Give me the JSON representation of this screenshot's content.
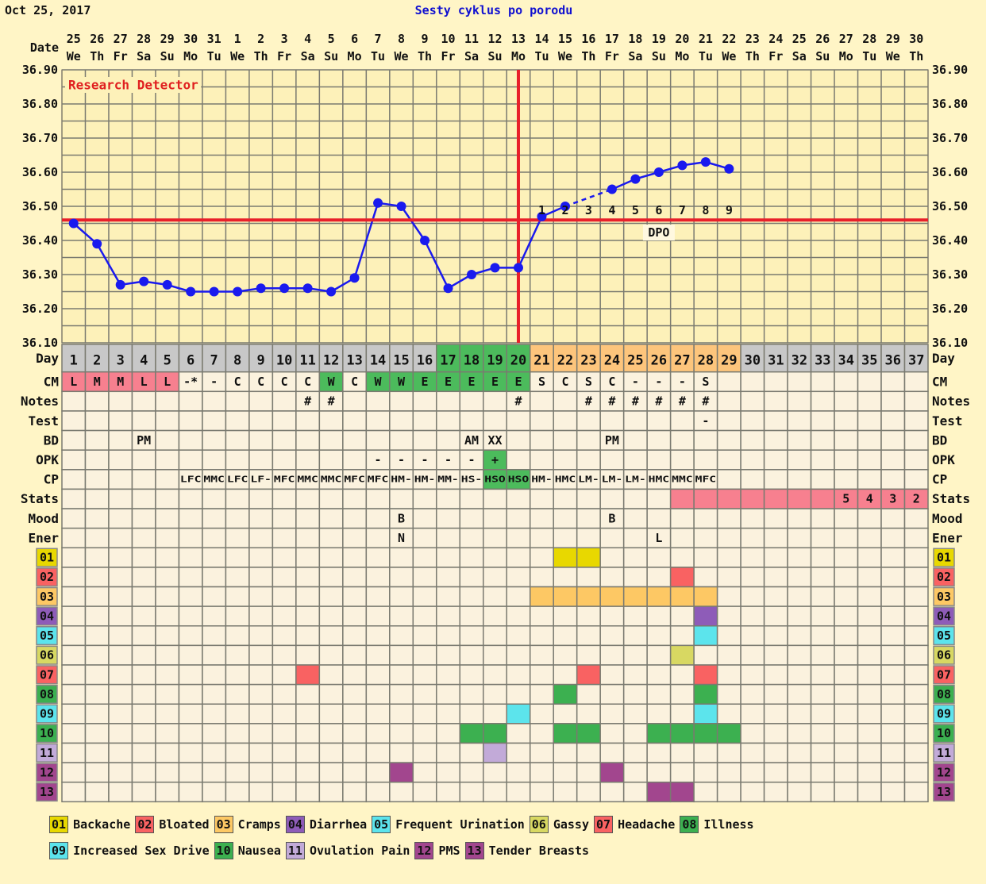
{
  "header": {
    "date": "Oct 25, 2017",
    "title": "Sesty cyklus po porodu"
  },
  "labels": {
    "date": "Date",
    "research_detector": "Research Detector",
    "dpo": "DPO"
  },
  "colors": {
    "page_bg": "#fff5c6",
    "chart_bg": "#fdf1b9",
    "cell_bg": "#fbf2de",
    "grid": "#7a7a70",
    "temp_line": "#1a1aee",
    "coverline": "#e8202a",
    "pink": "#f7808f",
    "green": "#4cbb5c",
    "orange": "#fdc57c",
    "gray": "#c8c8c8",
    "title": "#1010d0"
  },
  "dates": [
    "25",
    "26",
    "27",
    "28",
    "29",
    "30",
    "31",
    "1",
    "2",
    "3",
    "4",
    "5",
    "6",
    "7",
    "8",
    "9",
    "10",
    "11",
    "12",
    "13",
    "14",
    "15",
    "16",
    "17",
    "18",
    "19",
    "20",
    "21",
    "22",
    "23",
    "24",
    "25",
    "26",
    "27",
    "28",
    "29",
    "30"
  ],
  "weekdays": [
    "We",
    "Th",
    "Fr",
    "Sa",
    "Su",
    "Mo",
    "Tu",
    "We",
    "Th",
    "Fr",
    "Sa",
    "Su",
    "Mo",
    "Tu",
    "We",
    "Th",
    "Fr",
    "Sa",
    "Su",
    "Mo",
    "Tu",
    "We",
    "Th",
    "Fr",
    "Sa",
    "Su",
    "Mo",
    "Tu",
    "We",
    "Th",
    "Fr",
    "Sa",
    "Su",
    "Mo",
    "Tu",
    "We",
    "Th"
  ],
  "chart_data": {
    "type": "line",
    "ylim": [
      36.1,
      36.9
    ],
    "y_ticks": [
      "36.90",
      "36.80",
      "36.70",
      "36.60",
      "36.50",
      "36.40",
      "36.30",
      "36.20",
      "36.10"
    ],
    "grid": true,
    "temperatures": [
      36.45,
      36.39,
      36.27,
      36.28,
      36.27,
      36.25,
      36.25,
      36.25,
      36.26,
      36.26,
      36.26,
      36.25,
      36.29,
      36.51,
      36.5,
      36.4,
      36.26,
      36.3,
      36.32,
      36.32,
      36.47,
      36.5,
      null,
      36.55,
      36.58,
      36.6,
      36.62,
      36.63,
      36.61
    ],
    "coverline": 36.46,
    "ovulation_day": 20,
    "dpo_labels": [
      "1",
      "2",
      "3",
      "4",
      "5",
      "6",
      "7",
      "8",
      "9"
    ],
    "dpo_start_day": 21
  },
  "rows": {
    "day": {
      "label": "Day",
      "green_days": [
        17,
        18,
        19,
        20
      ],
      "orange_days": [
        21,
        22,
        23,
        24,
        25,
        26,
        27,
        28,
        29
      ]
    },
    "cm": {
      "label": "CM",
      "values": {
        "1": "L",
        "2": "M",
        "3": "M",
        "4": "L",
        "5": "L",
        "6": "-*",
        "7": "-",
        "8": "C",
        "9": "C",
        "10": "C",
        "11": "C",
        "12": "W",
        "13": "C",
        "14": "W",
        "15": "W",
        "16": "E",
        "17": "E",
        "18": "E",
        "19": "E",
        "20": "E",
        "21": "S",
        "22": "C",
        "23": "S",
        "24": "C",
        "25": "-",
        "26": "-",
        "27": "-",
        "28": "S"
      },
      "pink_days": [
        1,
        2,
        3,
        4,
        5
      ],
      "green_days": [
        12,
        14,
        15,
        16,
        17,
        18,
        19,
        20
      ]
    },
    "notes": {
      "label": "Notes",
      "values": {
        "11": "#",
        "12": "#",
        "20": "#",
        "23": "#",
        "24": "#",
        "25": "#",
        "26": "#",
        "27": "#",
        "28": "#"
      }
    },
    "test": {
      "label": "Test",
      "values": {
        "28": "-"
      }
    },
    "bd": {
      "label": "BD",
      "values": {
        "4": "PM",
        "18": "AM",
        "19": "XX",
        "24": "PM"
      }
    },
    "opk": {
      "label": "OPK",
      "values": {
        "14": "-",
        "15": "-",
        "16": "-",
        "17": "-",
        "18": "-",
        "19": "+"
      },
      "green_days": [
        19
      ]
    },
    "cp": {
      "label": "CP",
      "values": {
        "6": "LFC",
        "7": "MMC",
        "8": "LFC",
        "9": "LF-",
        "10": "MFC",
        "11": "MMC",
        "12": "MMC",
        "13": "MFC",
        "14": "MFC",
        "15": "HM-",
        "16": "HM-",
        "17": "MM-",
        "18": "HS-",
        "19": "HSO",
        "20": "HSO",
        "21": "HM-",
        "22": "HMC",
        "23": "LM-",
        "24": "LM-",
        "25": "LM-",
        "26": "HMC",
        "27": "MMC",
        "28": "MFC"
      },
      "green_days": [
        19,
        20
      ]
    },
    "stats": {
      "label": "Stats",
      "values": {
        "34": "5",
        "35": "4",
        "36": "3",
        "37": "2"
      },
      "pink_days": [
        27,
        28,
        29,
        30,
        31,
        32,
        33,
        34,
        35,
        36,
        37
      ]
    },
    "mood": {
      "label": "Mood",
      "values": {
        "15": "B",
        "24": "B"
      }
    },
    "ener": {
      "label": "Ener",
      "values": {
        "15": "N",
        "26": "L"
      }
    }
  },
  "symptoms": [
    {
      "code": "01",
      "name": "Backache",
      "color": "#e8d800",
      "days": [
        22,
        23
      ]
    },
    {
      "code": "02",
      "name": "Bloated",
      "color": "#f96262",
      "days": [
        27
      ]
    },
    {
      "code": "03",
      "name": "Cramps",
      "color": "#fdc864",
      "days": [
        21,
        22,
        23,
        24,
        25,
        26,
        27,
        28
      ]
    },
    {
      "code": "04",
      "name": "Diarrhea",
      "color": "#8e5cb8",
      "days": [
        28
      ]
    },
    {
      "code": "05",
      "name": "Frequent Urination",
      "color": "#5ce4ec",
      "days": [
        28
      ]
    },
    {
      "code": "06",
      "name": "Gassy",
      "color": "#d8d862",
      "days": [
        27
      ]
    },
    {
      "code": "07",
      "name": "Headache",
      "color": "#f96262",
      "days": [
        11,
        23,
        28
      ]
    },
    {
      "code": "08",
      "name": "Illness",
      "color": "#3cb050",
      "days": [
        22,
        28
      ]
    },
    {
      "code": "09",
      "name": "Increased Sex Drive",
      "color": "#5ce4ec",
      "days": [
        20,
        28
      ]
    },
    {
      "code": "10",
      "name": "Nausea",
      "color": "#3cb050",
      "days": [
        18,
        19,
        22,
        23,
        26,
        27,
        28,
        29
      ]
    },
    {
      "code": "11",
      "name": "Ovulation Pain",
      "color": "#c2aad8",
      "days": [
        19
      ]
    },
    {
      "code": "12",
      "name": "PMS",
      "color": "#a2468e",
      "days": [
        15,
        24
      ]
    },
    {
      "code": "13",
      "name": "Tender Breasts",
      "color": "#a2468e",
      "days": [
        26,
        27
      ]
    }
  ]
}
